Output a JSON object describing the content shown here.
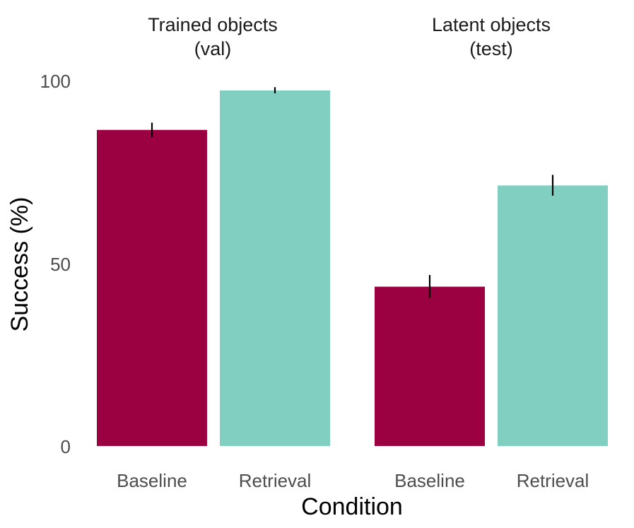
{
  "chart_data": {
    "type": "bar",
    "xlabel": "Condition",
    "ylabel": "Success (%)",
    "ylim": [
      0,
      100
    ],
    "yticks": [
      "0",
      "50",
      "100"
    ],
    "grid": false,
    "legend": "none",
    "colors": {
      "Baseline": "#9b0040",
      "Retrieval": "#81cfc1",
      "errorbar": "#000000"
    },
    "facets": [
      {
        "title_line1": "Trained objects",
        "title_line2": "(val)",
        "categories": [
          "Baseline",
          "Retrieval"
        ],
        "values": [
          86.5,
          97.3
        ],
        "error_low": [
          84.5,
          96.5
        ],
        "error_high": [
          88.5,
          98.2
        ]
      },
      {
        "title_line1": "Latent objects",
        "title_line2": "(test)",
        "categories": [
          "Baseline",
          "Retrieval"
        ],
        "values": [
          43.6,
          71.3
        ],
        "error_low": [
          40.5,
          68.5
        ],
        "error_high": [
          46.8,
          74.2
        ]
      }
    ]
  }
}
